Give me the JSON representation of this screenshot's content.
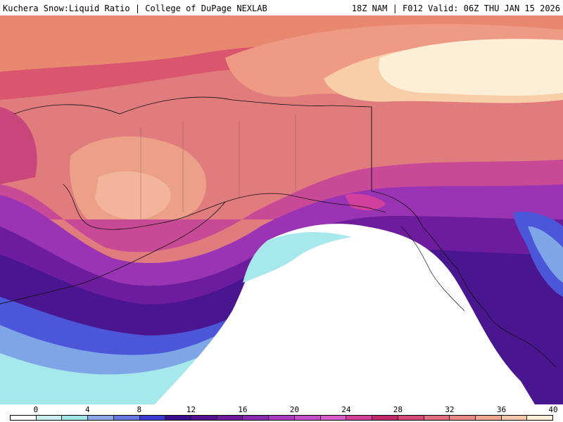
{
  "header": {
    "left_title": "Kuchera Snow:Liquid Ratio | College of DuPage NEXLAB",
    "right_title": "18Z NAM | F012 Valid: 06Z THU JAN 15 2026"
  },
  "colorbar": {
    "tick_labels": [
      "0",
      "4",
      "8",
      "12",
      "16",
      "20",
      "24",
      "28",
      "32",
      "36",
      "40"
    ],
    "colors": [
      "#ffffff",
      "#c8f0f0",
      "#9ee6e8",
      "#8aa8e8",
      "#6478e0",
      "#3c3cd2",
      "#3a0f8c",
      "#55108e",
      "#6e1a9a",
      "#8a2aae",
      "#a83cbe",
      "#c24ec8",
      "#d65ec8",
      "#d0409c",
      "#c2286e",
      "#d24a76",
      "#e06e7c",
      "#e88a86",
      "#f0a88e",
      "#f6c8a8",
      "#fcefd6"
    ]
  },
  "map": {
    "region": "Alaska and western Canada",
    "colors": {
      "ocean_white": "#ffffff",
      "cyan": "#a6e8ec",
      "light_blue": "#7ea6e6",
      "blue": "#4c56d8",
      "indigo": "#4a1690",
      "purple": "#6e1c9e",
      "violet": "#9a36b4",
      "magenta": "#c44a9e",
      "pink": "#d45a86",
      "salmon": "#e4807e",
      "peach": "#f0a48a",
      "light_peach": "#f8cfa8",
      "cream": "#fdefd6",
      "coastline": "#111111"
    }
  }
}
